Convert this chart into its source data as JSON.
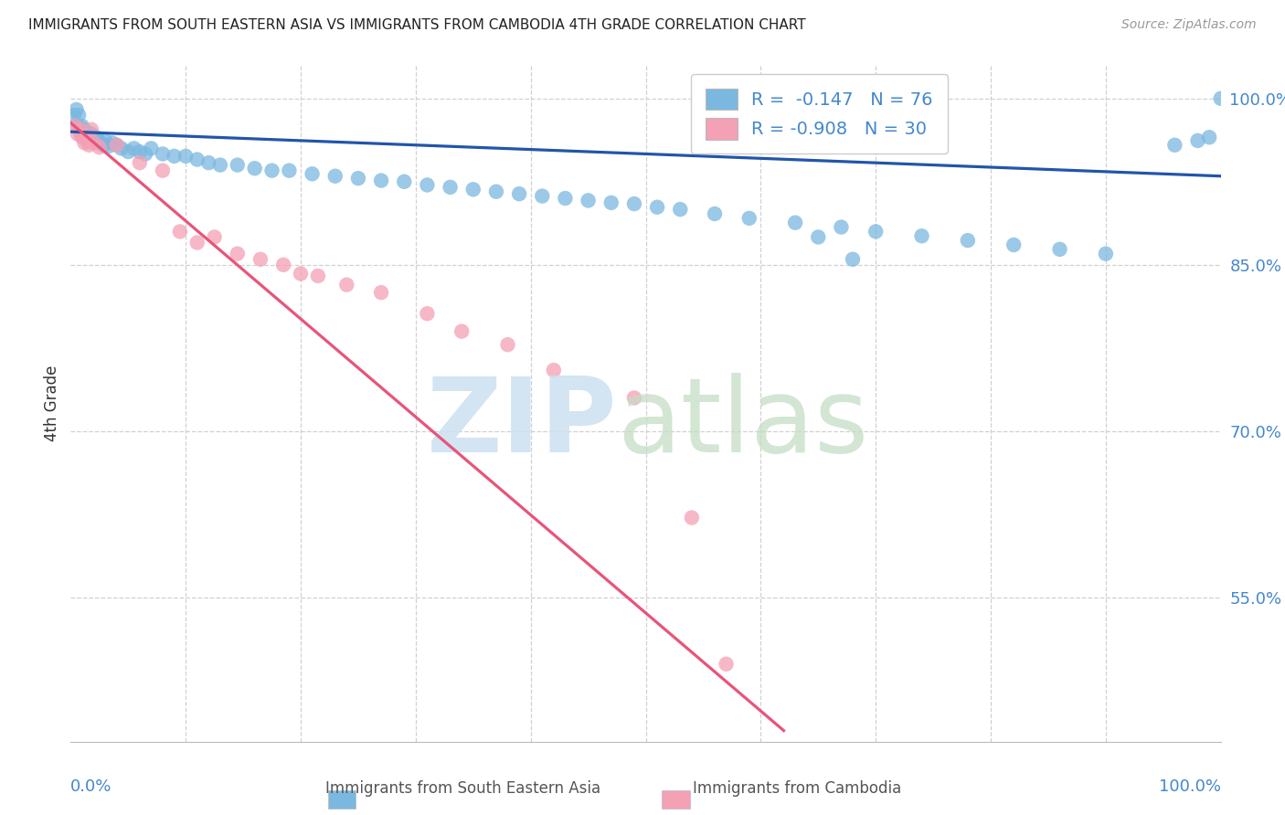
{
  "title": "IMMIGRANTS FROM SOUTH EASTERN ASIA VS IMMIGRANTS FROM CAMBODIA 4TH GRADE CORRELATION CHART",
  "source": "Source: ZipAtlas.com",
  "ylabel": "4th Grade",
  "xlim": [
    0.0,
    1.0
  ],
  "ylim": [
    0.42,
    1.03
  ],
  "yticks": [
    0.55,
    0.7,
    0.85,
    1.0
  ],
  "ytick_labels": [
    "55.0%",
    "70.0%",
    "85.0%",
    "100.0%"
  ],
  "blue_color": "#7ab8e0",
  "pink_color": "#f4a0b5",
  "blue_line_color": "#2255aa",
  "pink_line_color": "#e8547a",
  "axis_label_color": "#4488cc",
  "title_color": "#222222",
  "source_color": "#999999",
  "grid_color": "#d0d0d0",
  "legend_blue_label": "R =  -0.147   N = 76",
  "legend_pink_label": "R = -0.908   N = 30",
  "bottom_label_blue": "Immigrants from South Eastern Asia",
  "bottom_label_pink": "Immigrants from Cambodia",
  "blue_scatter_x": [
    0.003,
    0.005,
    0.006,
    0.007,
    0.008,
    0.009,
    0.01,
    0.01,
    0.011,
    0.012,
    0.013,
    0.014,
    0.015,
    0.016,
    0.017,
    0.018,
    0.019,
    0.02,
    0.021,
    0.022,
    0.024,
    0.026,
    0.028,
    0.03,
    0.033,
    0.036,
    0.04,
    0.044,
    0.05,
    0.055,
    0.06,
    0.065,
    0.07,
    0.08,
    0.09,
    0.1,
    0.11,
    0.12,
    0.13,
    0.145,
    0.16,
    0.175,
    0.19,
    0.21,
    0.23,
    0.25,
    0.27,
    0.29,
    0.31,
    0.33,
    0.35,
    0.37,
    0.39,
    0.41,
    0.43,
    0.45,
    0.47,
    0.49,
    0.51,
    0.53,
    0.56,
    0.59,
    0.63,
    0.67,
    0.7,
    0.74,
    0.78,
    0.82,
    0.86,
    0.9,
    0.65,
    0.68,
    0.96,
    0.98,
    0.99,
    1.0
  ],
  "blue_scatter_y": [
    0.985,
    0.99,
    0.975,
    0.985,
    0.972,
    0.968,
    0.975,
    0.97,
    0.972,
    0.968,
    0.965,
    0.97,
    0.968,
    0.966,
    0.965,
    0.968,
    0.965,
    0.963,
    0.962,
    0.965,
    0.962,
    0.96,
    0.958,
    0.962,
    0.957,
    0.96,
    0.958,
    0.955,
    0.952,
    0.955,
    0.952,
    0.95,
    0.955,
    0.95,
    0.948,
    0.948,
    0.945,
    0.942,
    0.94,
    0.94,
    0.937,
    0.935,
    0.935,
    0.932,
    0.93,
    0.928,
    0.926,
    0.925,
    0.922,
    0.92,
    0.918,
    0.916,
    0.914,
    0.912,
    0.91,
    0.908,
    0.906,
    0.905,
    0.902,
    0.9,
    0.896,
    0.892,
    0.888,
    0.884,
    0.88,
    0.876,
    0.872,
    0.868,
    0.864,
    0.86,
    0.875,
    0.855,
    0.958,
    0.962,
    0.965,
    1.0
  ],
  "pink_scatter_x": [
    0.004,
    0.006,
    0.008,
    0.01,
    0.012,
    0.014,
    0.016,
    0.018,
    0.02,
    0.025,
    0.04,
    0.06,
    0.08,
    0.095,
    0.11,
    0.125,
    0.145,
    0.165,
    0.185,
    0.2,
    0.215,
    0.24,
    0.27,
    0.31,
    0.34,
    0.38,
    0.42,
    0.49,
    0.54,
    0.57
  ],
  "pink_scatter_y": [
    0.975,
    0.968,
    0.972,
    0.965,
    0.96,
    0.962,
    0.958,
    0.972,
    0.96,
    0.956,
    0.958,
    0.942,
    0.935,
    0.88,
    0.87,
    0.875,
    0.86,
    0.855,
    0.85,
    0.842,
    0.84,
    0.832,
    0.825,
    0.806,
    0.79,
    0.778,
    0.755,
    0.73,
    0.622,
    0.49
  ],
  "blue_trend_x": [
    0.0,
    1.0
  ],
  "blue_trend_y": [
    0.97,
    0.93
  ],
  "pink_trend_x": [
    0.0,
    0.62
  ],
  "pink_trend_y": [
    0.978,
    0.43
  ]
}
